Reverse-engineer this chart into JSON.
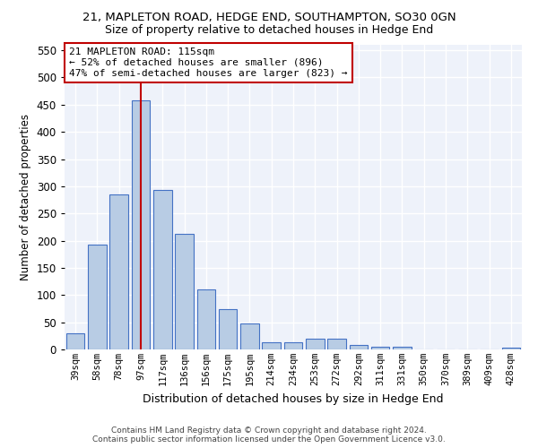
{
  "title1": "21, MAPLETON ROAD, HEDGE END, SOUTHAMPTON, SO30 0GN",
  "title2": "Size of property relative to detached houses in Hedge End",
  "xlabel": "Distribution of detached houses by size in Hedge End",
  "ylabel": "Number of detached properties",
  "categories": [
    "39sqm",
    "58sqm",
    "78sqm",
    "97sqm",
    "117sqm",
    "136sqm",
    "156sqm",
    "175sqm",
    "195sqm",
    "214sqm",
    "234sqm",
    "253sqm",
    "272sqm",
    "292sqm",
    "311sqm",
    "331sqm",
    "350sqm",
    "370sqm",
    "389sqm",
    "409sqm",
    "428sqm"
  ],
  "values": [
    30,
    192,
    285,
    458,
    293,
    213,
    110,
    74,
    48,
    13,
    13,
    19,
    19,
    8,
    5,
    5,
    0,
    0,
    0,
    0,
    4
  ],
  "bar_color": "#b8cce4",
  "bar_edge_color": "#4472c4",
  "vline_x": 3,
  "vline_color": "#c00000",
  "annotation_title": "21 MAPLETON ROAD: 115sqm",
  "annotation_line1": "← 52% of detached houses are smaller (896)",
  "annotation_line2": "47% of semi-detached houses are larger (823) →",
  "annotation_box_color": "#c00000",
  "ylim": [
    0,
    560
  ],
  "yticks": [
    0,
    50,
    100,
    150,
    200,
    250,
    300,
    350,
    400,
    450,
    500,
    550
  ],
  "background_color": "#eef2fa",
  "grid_color": "#ffffff",
  "footer1": "Contains HM Land Registry data © Crown copyright and database right 2024.",
  "footer2": "Contains public sector information licensed under the Open Government Licence v3.0."
}
